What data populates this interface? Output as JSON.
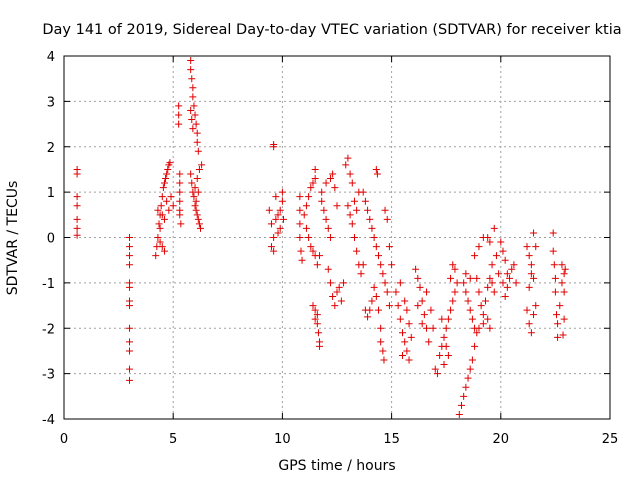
{
  "chart_data": {
    "type": "scatter",
    "title": "Day 141 of 2019, Sidereal Day-to-day VTEC variation (SDTVAR) for receiver ktia",
    "xlabel": "GPS time / hours",
    "ylabel": "SDTVAR / TECUs",
    "xlim": [
      0,
      25
    ],
    "ylim": [
      -4,
      4
    ],
    "xticks": [
      0,
      5,
      10,
      15,
      20,
      25
    ],
    "yticks": [
      -4,
      -3,
      -2,
      -1,
      0,
      1,
      2,
      3,
      4
    ],
    "xtick_labels": [
      "0",
      "5",
      "10",
      "15",
      "20",
      "25"
    ],
    "ytick_labels": [
      "-4",
      "-3",
      "-2",
      "-1",
      "0",
      "1",
      "2",
      "3",
      "4"
    ],
    "grid": true,
    "marker": "+",
    "series": [
      {
        "name": "SDTVAR",
        "color": "#e00000",
        "points": [
          [
            0.6,
            1.5
          ],
          [
            0.6,
            1.4
          ],
          [
            0.6,
            0.9
          ],
          [
            0.6,
            0.7
          ],
          [
            0.6,
            0.4
          ],
          [
            0.6,
            0.2
          ],
          [
            0.6,
            0.05
          ],
          [
            3.0,
            0.0
          ],
          [
            3.0,
            -0.2
          ],
          [
            3.0,
            -0.4
          ],
          [
            3.0,
            -0.6
          ],
          [
            3.0,
            -1.0
          ],
          [
            3.0,
            -1.1
          ],
          [
            3.0,
            -1.4
          ],
          [
            3.0,
            -1.5
          ],
          [
            3.0,
            -2.0
          ],
          [
            3.0,
            -2.3
          ],
          [
            3.0,
            -2.5
          ],
          [
            3.0,
            -2.9
          ],
          [
            3.0,
            -3.15
          ],
          [
            4.2,
            -0.4
          ],
          [
            4.25,
            -0.2
          ],
          [
            4.3,
            0.0
          ],
          [
            4.35,
            0.3
          ],
          [
            4.4,
            0.5
          ],
          [
            4.45,
            0.7
          ],
          [
            4.5,
            0.9
          ],
          [
            4.55,
            1.1
          ],
          [
            4.6,
            1.2
          ],
          [
            4.65,
            1.3
          ],
          [
            4.7,
            1.4
          ],
          [
            4.75,
            1.5
          ],
          [
            4.8,
            1.6
          ],
          [
            4.85,
            1.65
          ],
          [
            4.3,
            0.6
          ],
          [
            4.4,
            0.2
          ],
          [
            4.5,
            -0.2
          ],
          [
            4.6,
            0.4
          ],
          [
            4.7,
            0.8
          ],
          [
            4.8,
            0.6
          ],
          [
            4.9,
            0.9
          ],
          [
            5.0,
            0.7
          ],
          [
            4.4,
            -0.1
          ],
          [
            4.5,
            0.5
          ],
          [
            4.6,
            -0.3
          ],
          [
            5.25,
            2.9
          ],
          [
            5.25,
            2.7
          ],
          [
            5.25,
            2.5
          ],
          [
            5.3,
            1.4
          ],
          [
            5.3,
            1.2
          ],
          [
            5.3,
            1.0
          ],
          [
            5.3,
            0.8
          ],
          [
            5.3,
            0.6
          ],
          [
            5.3,
            0.5
          ],
          [
            5.35,
            0.3
          ],
          [
            5.8,
            3.9
          ],
          [
            5.8,
            3.7
          ],
          [
            5.85,
            3.5
          ],
          [
            5.9,
            3.3
          ],
          [
            5.9,
            3.1
          ],
          [
            5.95,
            2.9
          ],
          [
            6.0,
            2.7
          ],
          [
            6.05,
            2.5
          ],
          [
            6.1,
            2.3
          ],
          [
            6.1,
            2.1
          ],
          [
            6.15,
            1.9
          ],
          [
            5.8,
            2.8
          ],
          [
            5.85,
            2.6
          ],
          [
            5.9,
            2.4
          ],
          [
            5.8,
            1.4
          ],
          [
            5.85,
            1.2
          ],
          [
            5.9,
            1.0
          ],
          [
            5.95,
            0.9
          ],
          [
            6.0,
            0.7
          ],
          [
            6.05,
            0.6
          ],
          [
            6.1,
            0.5
          ],
          [
            6.15,
            0.4
          ],
          [
            6.2,
            0.3
          ],
          [
            6.25,
            0.2
          ],
          [
            6.0,
            1.1
          ],
          [
            6.1,
            1.3
          ],
          [
            6.2,
            1.5
          ],
          [
            6.3,
            1.6
          ],
          [
            6.05,
            0.8
          ],
          [
            6.15,
            1.0
          ],
          [
            9.6,
            2.05
          ],
          [
            9.6,
            2.0
          ],
          [
            9.4,
            0.6
          ],
          [
            9.5,
            0.3
          ],
          [
            9.5,
            -0.2
          ],
          [
            9.6,
            0.0
          ],
          [
            9.7,
            0.4
          ],
          [
            9.8,
            0.5
          ],
          [
            9.9,
            0.6
          ],
          [
            10.0,
            0.8
          ],
          [
            10.0,
            1.0
          ],
          [
            9.9,
            0.2
          ],
          [
            9.8,
            0.1
          ],
          [
            9.7,
            0.9
          ],
          [
            9.6,
            -0.3
          ],
          [
            10.05,
            0.4
          ],
          [
            10.8,
            0.9
          ],
          [
            10.8,
            0.6
          ],
          [
            10.8,
            0.3
          ],
          [
            10.8,
            0.0
          ],
          [
            10.85,
            -0.3
          ],
          [
            10.9,
            -0.5
          ],
          [
            11.0,
            0.5
          ],
          [
            11.1,
            0.7
          ],
          [
            11.2,
            0.9
          ],
          [
            11.3,
            1.1
          ],
          [
            11.4,
            1.2
          ],
          [
            11.5,
            1.5
          ],
          [
            11.5,
            1.3
          ],
          [
            11.1,
            0.2
          ],
          [
            11.3,
            -0.2
          ],
          [
            11.5,
            -0.4
          ],
          [
            11.6,
            -0.6
          ],
          [
            11.4,
            -0.3
          ],
          [
            11.2,
            0.0
          ],
          [
            11.7,
            -0.4
          ],
          [
            11.4,
            -1.5
          ],
          [
            11.5,
            -1.6
          ],
          [
            11.6,
            -1.7
          ],
          [
            11.6,
            -1.9
          ],
          [
            11.65,
            -2.1
          ],
          [
            11.7,
            -2.3
          ],
          [
            11.7,
            -2.4
          ],
          [
            11.5,
            -1.8
          ],
          [
            11.8,
            0.8
          ],
          [
            11.9,
            0.6
          ],
          [
            12.0,
            0.4
          ],
          [
            12.1,
            0.2
          ],
          [
            12.2,
            0.0
          ],
          [
            11.8,
            1.0
          ],
          [
            12.0,
            1.2
          ],
          [
            12.2,
            1.3
          ],
          [
            12.3,
            1.4
          ],
          [
            12.4,
            1.1
          ],
          [
            12.5,
            0.7
          ],
          [
            12.1,
            -0.7
          ],
          [
            12.2,
            -1.0
          ],
          [
            12.3,
            -1.3
          ],
          [
            12.4,
            -1.5
          ],
          [
            12.5,
            -1.2
          ],
          [
            12.6,
            -1.1
          ],
          [
            12.7,
            -1.4
          ],
          [
            12.8,
            -1.0
          ],
          [
            12.9,
            1.6
          ],
          [
            13.0,
            1.75
          ],
          [
            13.1,
            1.4
          ],
          [
            13.2,
            1.2
          ],
          [
            13.0,
            0.7
          ],
          [
            13.1,
            0.5
          ],
          [
            13.2,
            0.3
          ],
          [
            13.3,
            0.0
          ],
          [
            13.4,
            -0.3
          ],
          [
            13.5,
            -0.6
          ],
          [
            13.6,
            -0.8
          ],
          [
            13.7,
            -0.6
          ],
          [
            13.3,
            0.8
          ],
          [
            13.5,
            1.0
          ],
          [
            13.4,
            0.6
          ],
          [
            13.7,
            1.0
          ],
          [
            13.8,
            0.8
          ],
          [
            13.9,
            0.6
          ],
          [
            14.0,
            0.4
          ],
          [
            14.1,
            0.2
          ],
          [
            14.2,
            0.0
          ],
          [
            14.3,
            -0.2
          ],
          [
            14.4,
            -0.4
          ],
          [
            14.5,
            -0.6
          ],
          [
            14.6,
            -0.8
          ],
          [
            14.7,
            -1.0
          ],
          [
            14.8,
            -1.2
          ],
          [
            14.9,
            -1.5
          ],
          [
            13.8,
            -1.6
          ],
          [
            13.9,
            -1.75
          ],
          [
            14.0,
            -1.6
          ],
          [
            14.1,
            -1.4
          ],
          [
            14.3,
            1.5
          ],
          [
            14.35,
            1.4
          ],
          [
            14.2,
            -1.1
          ],
          [
            14.3,
            -1.3
          ],
          [
            14.4,
            -1.6
          ],
          [
            14.5,
            -2.0
          ],
          [
            14.5,
            -2.3
          ],
          [
            14.6,
            -2.5
          ],
          [
            14.65,
            -2.7
          ],
          [
            14.7,
            0.6
          ],
          [
            14.8,
            0.4
          ],
          [
            14.9,
            -0.2
          ],
          [
            15.0,
            -0.6
          ],
          [
            15.2,
            -1.2
          ],
          [
            15.3,
            -1.5
          ],
          [
            15.4,
            -1.8
          ],
          [
            15.5,
            -2.1
          ],
          [
            15.6,
            -2.3
          ],
          [
            15.7,
            -2.5
          ],
          [
            15.8,
            -2.7
          ],
          [
            15.4,
            -1.0
          ],
          [
            15.6,
            -1.4
          ],
          [
            15.8,
            -1.9
          ],
          [
            15.9,
            -2.2
          ],
          [
            15.5,
            -2.6
          ],
          [
            15.7,
            -1.6
          ],
          [
            16.1,
            -0.7
          ],
          [
            16.2,
            -0.9
          ],
          [
            16.3,
            -1.1
          ],
          [
            16.4,
            -1.4
          ],
          [
            16.5,
            -1.7
          ],
          [
            16.6,
            -2.0
          ],
          [
            16.7,
            -2.3
          ],
          [
            16.2,
            -1.5
          ],
          [
            16.4,
            -1.9
          ],
          [
            16.6,
            -1.2
          ],
          [
            16.8,
            -1.6
          ],
          [
            16.9,
            -2.0
          ],
          [
            17.0,
            -2.9
          ],
          [
            17.1,
            -3.0
          ],
          [
            17.2,
            -2.6
          ],
          [
            17.3,
            -2.4
          ],
          [
            17.4,
            -2.2
          ],
          [
            17.5,
            -2.0
          ],
          [
            17.6,
            -1.8
          ],
          [
            17.7,
            -1.6
          ],
          [
            17.8,
            -1.4
          ],
          [
            17.9,
            -1.2
          ],
          [
            17.4,
            -2.8
          ],
          [
            17.6,
            -2.6
          ],
          [
            17.5,
            -2.4
          ],
          [
            17.3,
            -1.8
          ],
          [
            17.7,
            -0.9
          ],
          [
            17.8,
            -0.6
          ],
          [
            17.9,
            -0.7
          ],
          [
            18.0,
            -1.0
          ],
          [
            18.1,
            -3.9
          ],
          [
            18.2,
            -3.7
          ],
          [
            18.3,
            -3.5
          ],
          [
            18.4,
            -3.3
          ],
          [
            18.5,
            -3.1
          ],
          [
            18.6,
            -2.9
          ],
          [
            18.7,
            -2.7
          ],
          [
            18.8,
            -2.4
          ],
          [
            18.3,
            -1.0
          ],
          [
            18.4,
            -1.2
          ],
          [
            18.5,
            -1.4
          ],
          [
            18.6,
            -1.6
          ],
          [
            18.7,
            -1.8
          ],
          [
            18.8,
            -2.0
          ],
          [
            18.9,
            -2.1
          ],
          [
            19.0,
            -2.0
          ],
          [
            19.2,
            -1.9
          ],
          [
            19.4,
            -1.8
          ],
          [
            19.5,
            -2.0
          ],
          [
            18.4,
            -0.8
          ],
          [
            18.6,
            -0.9
          ],
          [
            18.8,
            -0.4
          ],
          [
            19.0,
            -0.2
          ],
          [
            19.2,
            0.0
          ],
          [
            19.4,
            0.0
          ],
          [
            19.5,
            -0.1
          ],
          [
            18.9,
            -0.9
          ],
          [
            19.0,
            -1.2
          ],
          [
            19.1,
            -1.5
          ],
          [
            19.2,
            -1.7
          ],
          [
            19.3,
            -1.4
          ],
          [
            19.4,
            -1.1
          ],
          [
            19.5,
            -0.9
          ],
          [
            19.6,
            -0.6
          ],
          [
            19.7,
            0.2
          ],
          [
            19.8,
            -0.4
          ],
          [
            19.9,
            -0.8
          ],
          [
            19.6,
            -1.0
          ],
          [
            19.7,
            -1.2
          ],
          [
            20.0,
            -0.1
          ],
          [
            20.1,
            -0.3
          ],
          [
            20.2,
            -0.5
          ],
          [
            20.3,
            -0.8
          ],
          [
            20.1,
            -1.0
          ],
          [
            20.2,
            -1.3
          ],
          [
            20.3,
            -1.1
          ],
          [
            20.4,
            -0.9
          ],
          [
            20.5,
            -0.7
          ],
          [
            20.6,
            -0.6
          ],
          [
            20.7,
            -1.0
          ],
          [
            21.2,
            -0.2
          ],
          [
            21.3,
            -0.4
          ],
          [
            21.4,
            -0.6
          ],
          [
            21.5,
            -0.9
          ],
          [
            21.3,
            -1.1
          ],
          [
            21.4,
            -0.8
          ],
          [
            21.2,
            -1.6
          ],
          [
            21.3,
            -1.9
          ],
          [
            21.4,
            -2.1
          ],
          [
            21.5,
            -1.7
          ],
          [
            21.6,
            -1.5
          ],
          [
            21.5,
            0.1
          ],
          [
            21.6,
            -0.2
          ],
          [
            22.4,
            0.1
          ],
          [
            22.4,
            -0.3
          ],
          [
            22.45,
            -0.6
          ],
          [
            22.5,
            -0.9
          ],
          [
            22.5,
            -1.2
          ],
          [
            22.55,
            -1.7
          ],
          [
            22.6,
            -1.9
          ],
          [
            22.6,
            -2.2
          ],
          [
            22.7,
            -1.5
          ],
          [
            22.8,
            -1.0
          ],
          [
            22.8,
            -0.6
          ],
          [
            22.9,
            -0.8
          ],
          [
            22.9,
            -1.2
          ],
          [
            22.9,
            -1.8
          ],
          [
            22.85,
            -2.15
          ],
          [
            22.95,
            -0.7
          ]
        ]
      }
    ]
  }
}
